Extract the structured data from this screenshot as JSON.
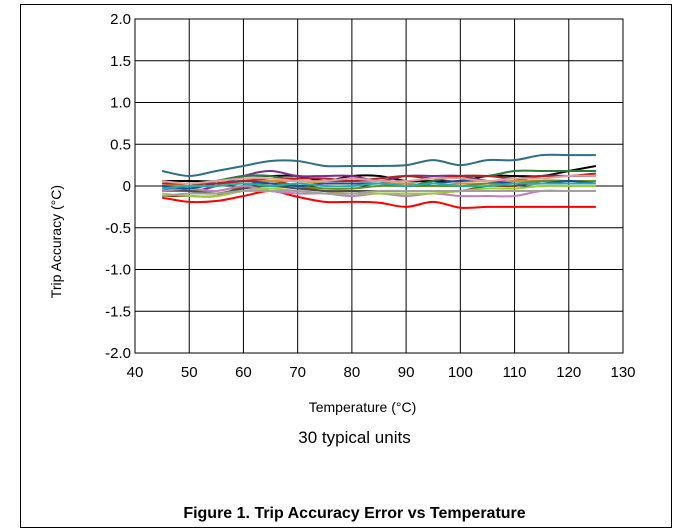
{
  "figure": {
    "caption": "Figure 1. Trip Accuracy Error vs Temperature",
    "note": "30 typical units"
  },
  "chart_data": {
    "type": "line",
    "title": "",
    "xlabel": "Temperature (°C)",
    "ylabel": "Trip Accuracy (°C)",
    "xlim": [
      40,
      130
    ],
    "ylim": [
      -2.0,
      2.0
    ],
    "x_ticks": [
      "40",
      "50",
      "60",
      "70",
      "80",
      "90",
      "100",
      "110",
      "120",
      "130"
    ],
    "y_ticks": [
      "2.0",
      "1.5",
      "1.0",
      "0.5",
      "0",
      "-0.5",
      "-1.0",
      "-1.5",
      "-2.0"
    ],
    "grid": true,
    "x": [
      45,
      50,
      55,
      60,
      65,
      70,
      75,
      80,
      85,
      90,
      95,
      100,
      105,
      110,
      115,
      120,
      125
    ],
    "series": [
      {
        "color": "#2e6f86",
        "values": [
          0.18,
          0.12,
          0.18,
          0.24,
          0.3,
          0.3,
          0.24,
          0.24,
          0.24,
          0.25,
          0.31,
          0.25,
          0.31,
          0.31,
          0.37,
          0.37,
          0.37
        ]
      },
      {
        "color": "#ff0000",
        "values": [
          -0.14,
          -0.19,
          -0.18,
          -0.12,
          -0.06,
          -0.13,
          -0.19,
          -0.19,
          -0.2,
          -0.25,
          -0.19,
          -0.26,
          -0.25,
          -0.25,
          -0.25,
          -0.25,
          -0.25
        ]
      },
      {
        "color": "#000000",
        "values": [
          0.06,
          0.06,
          0.06,
          0.12,
          0.12,
          0.12,
          0.06,
          0.12,
          0.12,
          0.06,
          0.06,
          0.06,
          0.12,
          0.12,
          0.12,
          0.18,
          0.24
        ]
      },
      {
        "color": "#7b2c8c",
        "values": [
          0.0,
          -0.06,
          0.0,
          0.12,
          0.18,
          0.12,
          0.12,
          0.12,
          0.06,
          0.12,
          0.12,
          0.12,
          0.06,
          0.06,
          0.12,
          0.12,
          0.12
        ]
      },
      {
        "color": "#2a7a3b",
        "values": [
          0.0,
          0.0,
          0.06,
          0.12,
          0.12,
          0.06,
          0.06,
          0.06,
          0.06,
          0.0,
          0.06,
          0.12,
          0.12,
          0.18,
          0.18,
          0.18,
          0.18
        ]
      },
      {
        "color": "#8b4513",
        "values": [
          -0.12,
          -0.12,
          -0.12,
          0.0,
          0.06,
          0.0,
          -0.06,
          -0.06,
          -0.06,
          -0.06,
          -0.06,
          -0.06,
          0.0,
          0.0,
          0.06,
          0.06,
          0.06
        ]
      },
      {
        "color": "#d98c2b",
        "values": [
          0.03,
          0.0,
          0.0,
          0.06,
          0.06,
          0.06,
          0.03,
          0.03,
          0.03,
          0.03,
          0.0,
          0.03,
          0.03,
          0.06,
          0.06,
          0.06,
          0.06
        ]
      },
      {
        "color": "#6b8e23",
        "values": [
          -0.06,
          -0.06,
          -0.06,
          0.0,
          0.03,
          0.0,
          -0.03,
          -0.03,
          0.0,
          0.0,
          0.0,
          0.0,
          0.03,
          0.03,
          0.06,
          0.06,
          0.06
        ]
      },
      {
        "color": "#4f4f4f",
        "values": [
          -0.03,
          -0.06,
          -0.09,
          -0.03,
          0.0,
          -0.03,
          -0.06,
          -0.06,
          -0.06,
          -0.06,
          -0.06,
          -0.06,
          -0.06,
          -0.06,
          -0.06,
          -0.06,
          -0.06
        ]
      },
      {
        "color": "#c080c0",
        "values": [
          -0.06,
          -0.03,
          -0.06,
          0.0,
          -0.06,
          -0.09,
          -0.09,
          -0.12,
          -0.09,
          -0.12,
          -0.09,
          -0.12,
          -0.12,
          -0.12,
          -0.06,
          -0.06,
          -0.06
        ]
      },
      {
        "color": "#1f4e9e",
        "values": [
          0.0,
          -0.03,
          0.03,
          0.06,
          0.03,
          0.0,
          0.03,
          0.03,
          0.03,
          0.0,
          0.03,
          0.06,
          0.06,
          0.03,
          0.03,
          0.06,
          0.03
        ]
      },
      {
        "color": "#9acd32",
        "values": [
          -0.09,
          -0.12,
          -0.12,
          -0.06,
          -0.03,
          -0.06,
          -0.09,
          -0.09,
          -0.09,
          -0.09,
          -0.09,
          -0.06,
          -0.03,
          -0.03,
          0.0,
          0.0,
          0.0
        ]
      },
      {
        "color": "#b22222",
        "values": [
          0.03,
          0.03,
          0.03,
          0.06,
          0.09,
          0.09,
          0.09,
          0.06,
          0.09,
          0.12,
          0.09,
          0.12,
          0.12,
          0.09,
          0.12,
          0.12,
          0.15
        ]
      },
      {
        "color": "#20b2aa",
        "values": [
          -0.03,
          0.0,
          0.0,
          0.03,
          0.0,
          0.03,
          0.0,
          0.0,
          0.03,
          0.0,
          0.03,
          0.0,
          0.0,
          0.03,
          0.03,
          0.03,
          0.03
        ]
      },
      {
        "color": "#a0a0a0",
        "values": [
          -0.12,
          -0.09,
          -0.09,
          -0.06,
          -0.06,
          -0.06,
          -0.09,
          -0.09,
          -0.06,
          -0.06,
          -0.06,
          -0.06,
          -0.06,
          -0.06,
          -0.06,
          -0.06,
          -0.06
        ]
      },
      {
        "color": "#e0a0a0",
        "values": [
          0.06,
          0.03,
          0.06,
          0.09,
          0.09,
          0.06,
          0.06,
          0.09,
          0.06,
          0.06,
          0.09,
          0.09,
          0.06,
          0.09,
          0.09,
          0.12,
          0.12
        ]
      }
    ]
  }
}
